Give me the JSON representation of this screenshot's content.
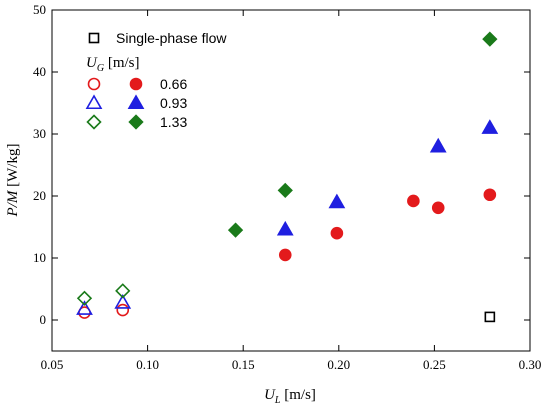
{
  "chart_data": {
    "type": "scatter",
    "xlabel": {
      "main": "U",
      "sub": "L",
      "unit": " [m/s]"
    },
    "ylabel": {
      "main": "P/M",
      "unit": " [W/kg]"
    },
    "xlim": [
      0.05,
      0.3
    ],
    "ylim": [
      -5,
      50
    ],
    "xticks": [
      0.05,
      0.1,
      0.15,
      0.2,
      0.25,
      0.3
    ],
    "xtick_labels": [
      "0.05",
      "0.10",
      "0.15",
      "0.20",
      "0.25",
      "0.30"
    ],
    "yticks": [
      0,
      10,
      20,
      30,
      40,
      50
    ],
    "ytick_labels": [
      "0",
      "10",
      "20",
      "30",
      "40",
      "50"
    ],
    "legend": {
      "placement": "top-left",
      "single_phase_label": "Single-phase flow",
      "ug_title": {
        "main": "U",
        "sub": "G",
        "unit": " [m/s]"
      },
      "rows": [
        {
          "label": "0.66",
          "color": "#e31a1c",
          "marker": "circle"
        },
        {
          "label": "0.93",
          "color": "#1f1fe0",
          "marker": "triangle"
        },
        {
          "label": "1.33",
          "color": "#1a7a1a",
          "marker": "diamond"
        }
      ]
    },
    "series": [
      {
        "legend_row": 0,
        "marker": "circle",
        "filled": false,
        "color": "#e31a1c",
        "points": [
          [
            0.067,
            1.2
          ],
          [
            0.087,
            1.6
          ]
        ]
      },
      {
        "legend_row": 0,
        "marker": "circle",
        "filled": true,
        "color": "#e31a1c",
        "points": [
          [
            0.172,
            10.5
          ],
          [
            0.199,
            14.0
          ],
          [
            0.239,
            19.2
          ],
          [
            0.252,
            18.1
          ],
          [
            0.279,
            20.2
          ]
        ]
      },
      {
        "legend_row": 1,
        "marker": "triangle",
        "filled": false,
        "color": "#1f1fe0",
        "points": [
          [
            0.067,
            1.8
          ],
          [
            0.087,
            2.8
          ]
        ]
      },
      {
        "legend_row": 1,
        "marker": "triangle",
        "filled": true,
        "color": "#1f1fe0",
        "points": [
          [
            0.172,
            14.6
          ],
          [
            0.199,
            19.0
          ],
          [
            0.252,
            28.0
          ],
          [
            0.279,
            31.0
          ]
        ]
      },
      {
        "legend_row": 2,
        "marker": "diamond",
        "filled": false,
        "color": "#1a7a1a",
        "points": [
          [
            0.067,
            3.5
          ],
          [
            0.087,
            4.7
          ]
        ]
      },
      {
        "legend_row": 2,
        "marker": "diamond",
        "filled": true,
        "color": "#1a7a1a",
        "points": [
          [
            0.146,
            14.5
          ],
          [
            0.172,
            20.9
          ],
          [
            0.279,
            45.3
          ]
        ]
      },
      {
        "legend_row": -1,
        "marker": "square",
        "filled": false,
        "color": "#000000",
        "points": [
          [
            0.279,
            0.5
          ]
        ]
      }
    ]
  }
}
